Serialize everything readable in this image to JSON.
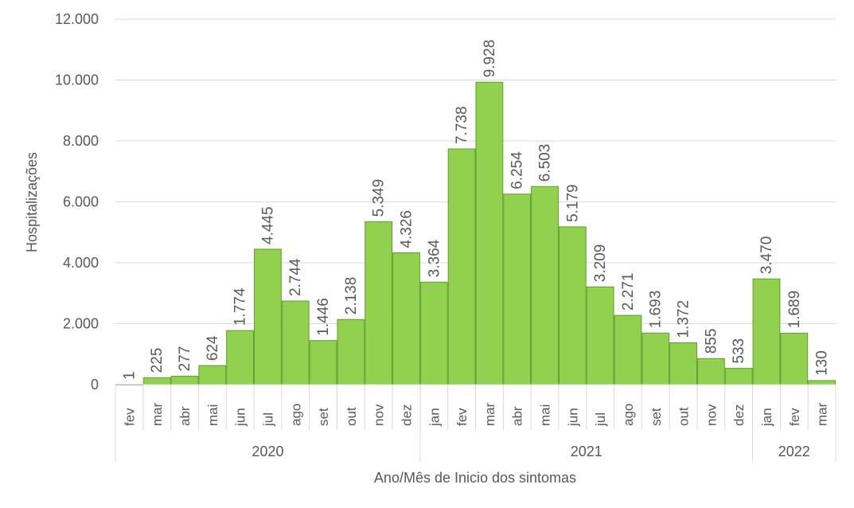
{
  "chart_data": {
    "type": "bar",
    "title": "",
    "xlabel": "Ano/Mês de Inicio dos sintomas",
    "ylabel": "Hospitalizações",
    "ylim": [
      0,
      12000
    ],
    "y_ticks": [
      0,
      2000,
      4000,
      6000,
      8000,
      10000,
      12000
    ],
    "y_tick_labels": [
      "0",
      "2.000",
      "4.000",
      "6.000",
      "8.000",
      "10.000",
      "12.000"
    ],
    "grid": true,
    "legend": "none",
    "bar_color": "#92d050",
    "bar_border_color": "#5f9e2f",
    "gridline_color": "#d9d9d9",
    "categories": [
      "fev",
      "mar",
      "abr",
      "mai",
      "jun",
      "jul",
      "ago",
      "set",
      "out",
      "nov",
      "dez",
      "jan",
      "fev",
      "mar",
      "abr",
      "mai",
      "jun",
      "jul",
      "ago",
      "set",
      "out",
      "nov",
      "dez",
      "jan",
      "fev",
      "mar"
    ],
    "values": [
      1,
      225,
      277,
      624,
      1774,
      4445,
      2744,
      1446,
      2138,
      5349,
      4326,
      3364,
      7738,
      9928,
      6254,
      6503,
      5179,
      3209,
      2271,
      1693,
      1372,
      855,
      533,
      3470,
      1689,
      130
    ],
    "data_labels": [
      "1",
      "225",
      "277",
      "624",
      "1.774",
      "4.445",
      "2.744",
      "1.446",
      "2.138",
      "5.349",
      "4.326",
      "3.364",
      "7.738",
      "9.928",
      "6.254",
      "6.503",
      "5.179",
      "3.209",
      "2.271",
      "1.693",
      "1.372",
      "855",
      "533",
      "3.470",
      "1.689",
      "130"
    ],
    "year_groups": [
      {
        "label": "2020",
        "count": 11
      },
      {
        "label": "2021",
        "count": 12
      },
      {
        "label": "2022",
        "count": 3
      }
    ]
  }
}
